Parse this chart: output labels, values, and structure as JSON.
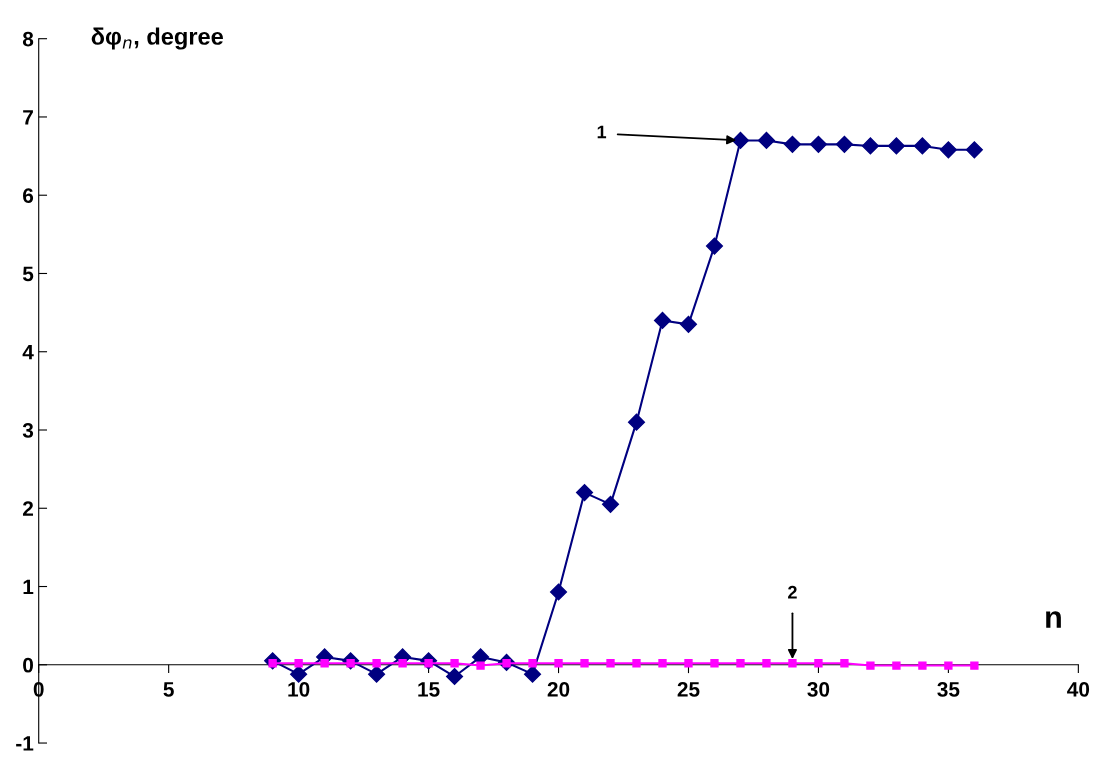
{
  "chart_data": {
    "type": "line",
    "ylabel": "δφ$_{n}$, degree",
    "xlabel": "n",
    "x": [
      9,
      10,
      11,
      12,
      13,
      14,
      15,
      16,
      17,
      18,
      19,
      20,
      21,
      22,
      23,
      24,
      25,
      26,
      27,
      28,
      29,
      30,
      31,
      32,
      33,
      34,
      35,
      36
    ],
    "series": [
      {
        "color": "#000080",
        "marker": "diamond",
        "values": [
          0.05,
          -0.12,
          0.1,
          0.05,
          -0.12,
          0.1,
          0.05,
          -0.15,
          0.1,
          0.03,
          -0.12,
          0.93,
          2.2,
          2.05,
          3.1,
          4.4,
          4.35,
          5.35,
          6.7,
          6.7,
          6.65,
          6.65,
          6.65,
          6.63,
          6.63,
          6.63,
          6.58,
          6.58
        ]
      },
      {
        "color": "#ff00ff",
        "marker": "square",
        "values": [
          0.02,
          0.02,
          0.02,
          0.02,
          0.02,
          0.02,
          0.02,
          0.02,
          -0.01,
          0.02,
          0.02,
          0.02,
          0.02,
          0.02,
          0.02,
          0.02,
          0.02,
          0.02,
          0.02,
          0.02,
          0.02,
          0.02,
          0.02,
          -0.01,
          -0.01,
          -0.01,
          -0.01,
          -0.01
        ]
      }
    ],
    "annotations": [
      {
        "text": "1",
        "x": 27,
        "y": 6.7
      },
      {
        "text": "2",
        "x": 29,
        "y": 0.02
      }
    ],
    "xlim": [
      0,
      40
    ],
    "xticks": [
      0,
      5,
      10,
      15,
      20,
      25,
      30,
      35,
      40
    ],
    "ylim": [
      -1,
      8
    ],
    "yticks": [
      -1,
      0,
      1,
      2,
      3,
      4,
      5,
      6,
      7,
      8
    ],
    "grid": false,
    "legend": false,
    "line_style": "solid"
  }
}
